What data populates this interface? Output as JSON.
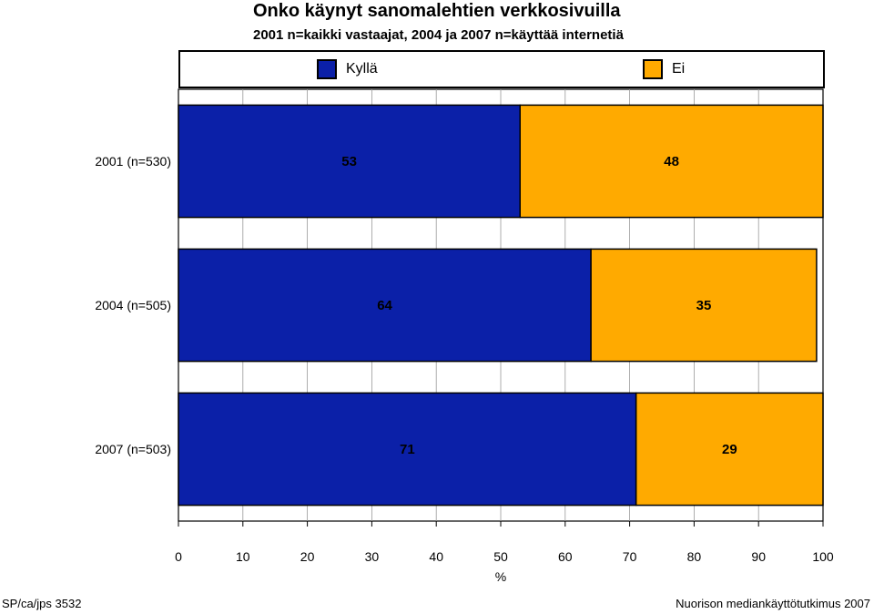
{
  "title": "Onko käynyt sanomalehtien verkkosivuilla",
  "subtitle": "2001 n=kaikki vastaajat, 2004 ja 2007 n=käyttää internetiä",
  "legend": [
    {
      "label": "Kyllä",
      "color": "#0B20A8"
    },
    {
      "label": "Ei",
      "color": "#FFAA00"
    }
  ],
  "footer": {
    "left": "SP/ca/jps 3532",
    "right": "Nuorison mediankäyttötutkimus 2007"
  },
  "chart_data": {
    "type": "bar",
    "orientation": "horizontal",
    "stacked": true,
    "title": "Onko käynyt sanomalehtien verkkosivuilla",
    "subtitle": "2001 n=kaikki vastaajat, 2004 ja 2007 n=käyttää internetiä",
    "xlabel": "%",
    "ylabel": "",
    "xlim": [
      0,
      100
    ],
    "xticks": [
      0,
      10,
      20,
      30,
      40,
      50,
      60,
      70,
      80,
      90,
      100
    ],
    "grid": "vertical",
    "legend_position": "top",
    "categories": [
      "2001 (n=530)",
      "2004 (n=505)",
      "2007 (n=503)"
    ],
    "series": [
      {
        "name": "Kyllä",
        "color": "#0B20A8",
        "values": [
          53,
          64,
          71
        ],
        "labels": [
          "53",
          "64",
          "71"
        ]
      },
      {
        "name": "Ei",
        "color": "#FFAA00",
        "values": [
          48,
          35,
          29
        ],
        "labels": [
          "48",
          "35",
          "29"
        ]
      }
    ]
  }
}
